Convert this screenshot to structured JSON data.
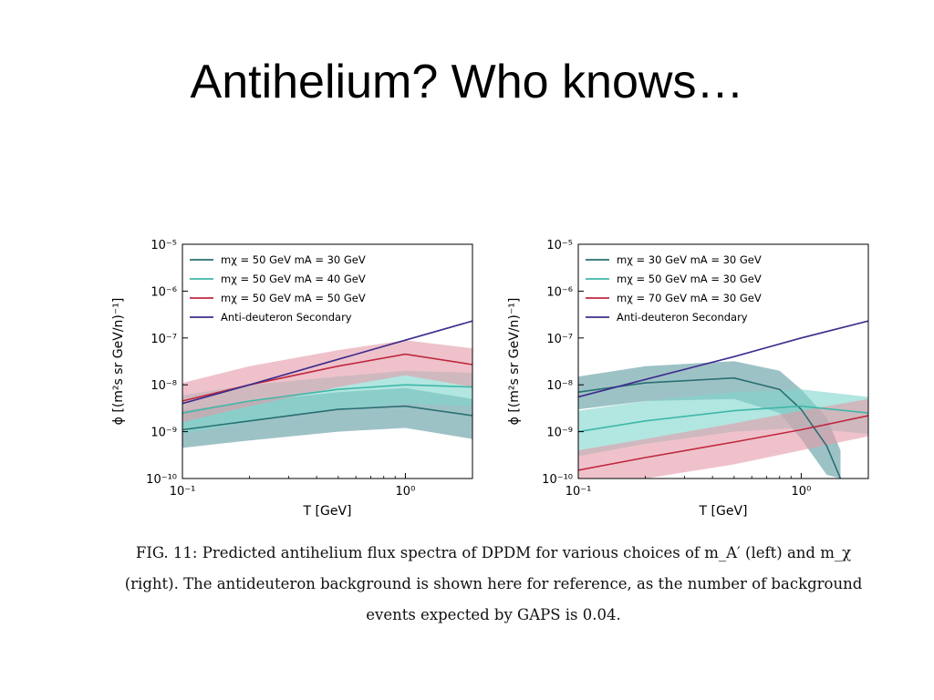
{
  "slide": {
    "title": "Antihelium? Who knows…"
  },
  "caption": {
    "line1": "FIG. 11: Predicted antihelium flux spectra of DPDM for various choices of m_A′ (left) and m_χ",
    "line2": "(right). The antideuteron background is shown here for reference, as the number of background",
    "line3": "events expected by GAPS is 0.04."
  },
  "chart_data": [
    {
      "type": "line",
      "panel": "left",
      "xlabel": "T [GeV]",
      "ylabel": "ϕ [(m²s sr GeV/n)⁻¹]",
      "xscale": "log",
      "yscale": "log",
      "xlim": [
        0.1,
        2.0
      ],
      "ylim": [
        1e-10,
        1e-05
      ],
      "xticks": [
        {
          "value": 0.1,
          "label": "10⁻¹"
        },
        {
          "value": 1,
          "label": "10⁰"
        }
      ],
      "yticks": [
        {
          "value": 1e-10,
          "label": "10⁻¹⁰"
        },
        {
          "value": 1e-09,
          "label": "10⁻⁹"
        },
        {
          "value": 1e-08,
          "label": "10⁻⁸"
        },
        {
          "value": 1e-07,
          "label": "10⁻⁷"
        },
        {
          "value": 1e-06,
          "label": "10⁻⁶"
        },
        {
          "value": 1e-05,
          "label": "10⁻⁵"
        }
      ],
      "legend_position": "top-left",
      "series": [
        {
          "name": "mχ = 50 GeV mA = 30 GeV",
          "color": "#2a6f73",
          "band_color": "#5b9aa0",
          "x": [
            0.1,
            0.2,
            0.5,
            1.0,
            2.0
          ],
          "y": [
            1.1e-09,
            1.7e-09,
            3e-09,
            3.5e-09,
            2.2e-09
          ],
          "y_low": [
            4.5e-10,
            6.5e-10,
            1e-09,
            1.2e-09,
            7e-10
          ],
          "y_high": [
            2.8e-09,
            4.5e-09,
            7e-09,
            8.5e-09,
            5e-09
          ]
        },
        {
          "name": "mχ = 50 GeV mA = 40 GeV",
          "color": "#3fb7a8",
          "band_color": "#7fd6cb",
          "x": [
            0.1,
            0.2,
            0.5,
            1.0,
            2.0
          ],
          "y": [
            2.5e-09,
            4.5e-09,
            8e-09,
            1e-08,
            9e-09
          ],
          "y_low": [
            9e-10,
            1.6e-09,
            3e-09,
            4e-09,
            3.5e-09
          ],
          "y_high": [
            6e-09,
            1e-08,
            1.5e-08,
            2e-08,
            1.8e-08
          ]
        },
        {
          "name": "mχ = 50 GeV mA = 50 GeV",
          "color": "#c0283f",
          "band_color": "#e59aa8",
          "x": [
            0.1,
            0.2,
            0.5,
            1.0,
            2.0
          ],
          "y": [
            4.5e-09,
            1e-08,
            2.5e-08,
            4.5e-08,
            2.7e-08
          ],
          "y_low": [
            1.6e-09,
            3.5e-09,
            9e-09,
            1.6e-08,
            9e-09
          ],
          "y_high": [
            1.1e-08,
            2.5e-08,
            5.5e-08,
            9e-08,
            6e-08
          ]
        },
        {
          "name": "Anti-deuteron Secondary",
          "color": "#3d2b8c",
          "x": [
            0.1,
            0.2,
            0.5,
            1.0,
            2.0
          ],
          "y": [
            4e-09,
            1e-08,
            3.5e-08,
            9e-08,
            2.3e-07
          ]
        }
      ]
    },
    {
      "type": "line",
      "panel": "right",
      "xlabel": "T [GeV]",
      "ylabel": "ϕ [(m²s sr GeV/n)⁻¹]",
      "xscale": "log",
      "yscale": "log",
      "xlim": [
        0.1,
        2.0
      ],
      "ylim": [
        1e-10,
        1e-05
      ],
      "xticks": [
        {
          "value": 0.1,
          "label": "10⁻¹"
        },
        {
          "value": 1,
          "label": "10⁰"
        }
      ],
      "yticks": [
        {
          "value": 1e-10,
          "label": "10⁻¹⁰"
        },
        {
          "value": 1e-09,
          "label": "10⁻⁹"
        },
        {
          "value": 1e-08,
          "label": "10⁻⁸"
        },
        {
          "value": 1e-07,
          "label": "10⁻⁷"
        },
        {
          "value": 1e-06,
          "label": "10⁻⁶"
        },
        {
          "value": 1e-05,
          "label": "10⁻⁵"
        }
      ],
      "legend_position": "top-left",
      "series": [
        {
          "name": "mχ = 30 GeV mA = 30 GeV",
          "color": "#2a6f73",
          "band_color": "#5b9aa0",
          "x": [
            0.1,
            0.2,
            0.5,
            0.8,
            1.0,
            1.3,
            1.5
          ],
          "y": [
            7e-09,
            1.1e-08,
            1.4e-08,
            8e-09,
            3e-09,
            5e-10,
            1e-10
          ],
          "y_low": [
            3e-09,
            4.5e-09,
            5e-09,
            2.5e-09,
            7e-10,
            1.2e-10,
            1e-10
          ],
          "y_high": [
            1.5e-08,
            2.5e-08,
            3.2e-08,
            2e-08,
            8e-09,
            2e-09,
            4e-10
          ]
        },
        {
          "name": "mχ = 50 GeV mA = 30 GeV",
          "color": "#3fb7a8",
          "band_color": "#7fd6cb",
          "x": [
            0.1,
            0.2,
            0.5,
            1.0,
            2.0
          ],
          "y": [
            1e-09,
            1.7e-09,
            2.8e-09,
            3.5e-09,
            2.5e-09
          ],
          "y_low": [
            3e-10,
            5.5e-10,
            1e-09,
            1.2e-09,
            9e-10
          ],
          "y_high": [
            2.8e-09,
            4.5e-09,
            7e-09,
            8e-09,
            5.5e-09
          ]
        },
        {
          "name": "mχ = 70 GeV mA = 30 GeV",
          "color": "#c0283f",
          "band_color": "#e59aa8",
          "x": [
            0.1,
            0.2,
            0.5,
            1.0,
            2.0
          ],
          "y": [
            1.5e-10,
            2.8e-10,
            6e-10,
            1.1e-09,
            2.2e-09
          ],
          "y_low": [
            1e-10,
            1e-10,
            2e-10,
            4e-10,
            8e-10
          ],
          "y_high": [
            4e-10,
            7e-10,
            1.5e-09,
            2.8e-09,
            5e-09
          ]
        },
        {
          "name": "Anti-deuteron Secondary",
          "color": "#3d2b8c",
          "x": [
            0.1,
            0.2,
            0.5,
            1.0,
            2.0
          ],
          "y": [
            5.5e-09,
            1.3e-08,
            4e-08,
            1e-07,
            2.3e-07
          ]
        }
      ]
    }
  ]
}
